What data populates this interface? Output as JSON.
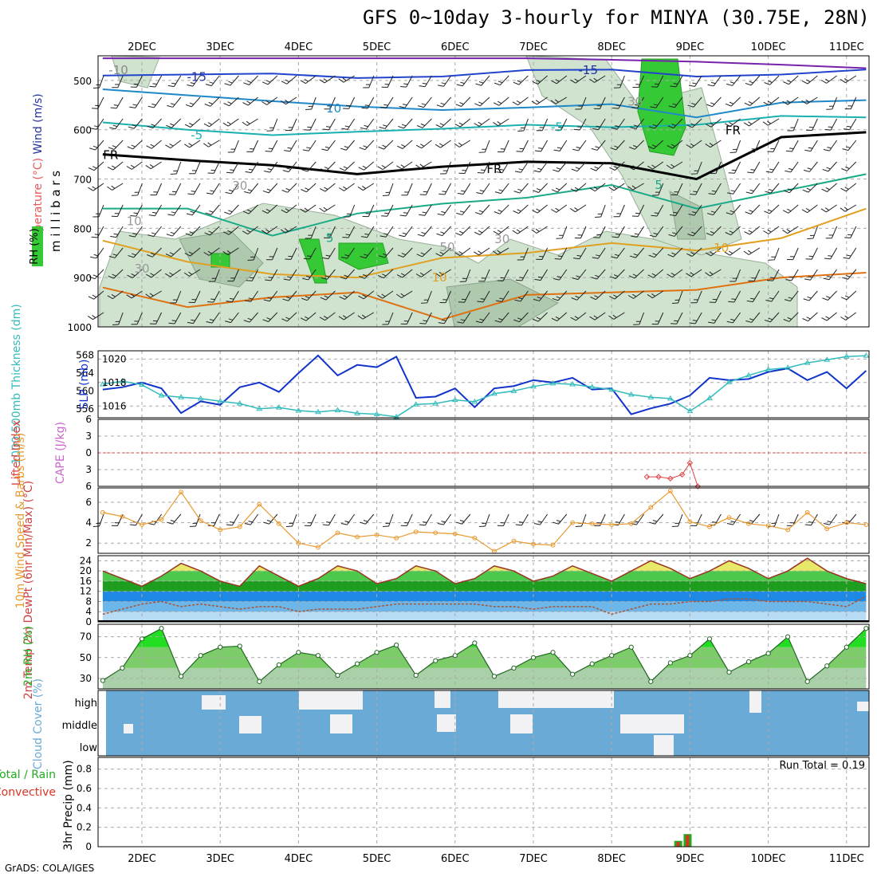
{
  "title": "GFS 0~10day 3-hourly for MINYA (30.75E, 28N)",
  "footer": "GrADS: COLA/IGES",
  "run_total": "Run Total = 0.19",
  "colors": {
    "rh_green": "#36c936",
    "temp_line": "#e85a5a",
    "wind_label": "#223399",
    "slp_line": "#1133cc",
    "thickness_line": "#33bbbb",
    "lifted_index": "#e04040",
    "cape": "#cc66cc",
    "wind10m": "#e89a30",
    "cloud_blue": "#6aaad6",
    "precip_green": "#22aa22",
    "precip_red": "#dd3322"
  },
  "chart_data": [
    {
      "type": "line",
      "panel": "upper_air",
      "ylabel_parts": [
        "RH (%)",
        "Temperature (°C)",
        "Wind (m/s)"
      ],
      "yaxis_label": "millibars",
      "x_ticks": [
        "2DEC",
        "3DEC",
        "4DEC",
        "5DEC",
        "6DEC",
        "7DEC",
        "8DEC",
        "9DEC",
        "10DEC",
        "11DEC"
      ],
      "y_ticks": [
        500,
        600,
        700,
        800,
        900,
        1000
      ],
      "ylim": [
        1000,
        450
      ],
      "contour_labels": [
        {
          "text": "-15",
          "x": 2.7,
          "p": 493,
          "color": "#223399"
        },
        {
          "text": "-15",
          "x": 7.7,
          "p": 479,
          "color": "#223399"
        },
        {
          "text": "-10",
          "x": 1.7,
          "p": 479,
          "color": "#888888"
        },
        {
          "text": "10",
          "x": 4.45,
          "p": 557,
          "color": "#1e88c8"
        },
        {
          "text": "-5",
          "x": 2.7,
          "p": 611,
          "color": "#1ab0b0"
        },
        {
          "text": "-5",
          "x": 7.3,
          "p": 595,
          "color": "#1ab0b0"
        },
        {
          "text": "FR",
          "x": 1.6,
          "p": 651,
          "color": "#000000"
        },
        {
          "text": "FR",
          "x": 6.5,
          "p": 680,
          "color": "#000000"
        },
        {
          "text": "FR",
          "x": 9.55,
          "p": 601,
          "color": "#000000"
        },
        {
          "text": "5",
          "x": 8.6,
          "p": 712,
          "color": "#1aaa88"
        },
        {
          "text": "5",
          "x": 4.4,
          "p": 820,
          "color": "#1aaa88"
        },
        {
          "text": "10",
          "x": 9.4,
          "p": 840,
          "color": "#e0a020"
        },
        {
          "text": "10",
          "x": 5.8,
          "p": 900,
          "color": "#e0a020"
        },
        {
          "text": "30",
          "x": 3.25,
          "p": 714,
          "color": "#999999"
        },
        {
          "text": "30",
          "x": 6.6,
          "p": 822,
          "color": "#999999"
        },
        {
          "text": "30",
          "x": 2.0,
          "p": 882,
          "color": "#999999"
        },
        {
          "text": "50",
          "x": 5.9,
          "p": 838,
          "color": "#999999"
        },
        {
          "text": "10",
          "x": 1.9,
          "p": 786,
          "color": "#999999"
        },
        {
          "text": "30",
          "x": 8.3,
          "p": 543,
          "color": "#999999"
        }
      ],
      "temperature_isotherms": [
        {
          "label": "-15",
          "color": "#7722aa",
          "p": [
            455,
            455,
            455,
            455,
            455,
            455,
            458,
            462,
            468,
            475
          ]
        },
        {
          "label": "-15",
          "color": "#2244cc",
          "p": [
            490,
            488,
            486,
            495,
            492,
            479,
            478,
            492,
            488,
            478
          ]
        },
        {
          "label": "-10",
          "color": "#1e88c8",
          "p": [
            518,
            530,
            542,
            553,
            560,
            555,
            548,
            575,
            545,
            540
          ]
        },
        {
          "label": "-5",
          "color": "#1ab0b0",
          "p": [
            585,
            600,
            611,
            604,
            598,
            590,
            595,
            590,
            572,
            575
          ]
        },
        {
          "label": "FR",
          "color": "#000000",
          "p": [
            650,
            662,
            672,
            690,
            675,
            665,
            668,
            700,
            615,
            605
          ]
        },
        {
          "label": "5",
          "color": "#1aaa88",
          "p": [
            760,
            760,
            815,
            770,
            750,
            738,
            712,
            760,
            725,
            690
          ]
        },
        {
          "label": "10",
          "color": "#e0a020",
          "p": [
            825,
            868,
            893,
            900,
            860,
            850,
            830,
            845,
            820,
            760
          ]
        },
        {
          "label": "15",
          "color": "#e07010",
          "p": [
            920,
            960,
            940,
            930,
            985,
            935,
            930,
            925,
            900,
            890
          ]
        }
      ]
    },
    {
      "type": "line",
      "panel": "slp_thickness",
      "ylabel_left": "1000-500mb Thickness (dm)",
      "ylabel_right": "SLP (mb)",
      "thickness_ticks": [
        556,
        560,
        564,
        568
      ],
      "slp_ticks": [
        1016,
        1018,
        1020
      ],
      "thickness_ylim": [
        554,
        569
      ],
      "slp_ylim": [
        1015,
        1020.7
      ],
      "x": [
        1.5,
        1.75,
        2,
        2.25,
        2.5,
        2.75,
        3,
        3.25,
        3.5,
        3.75,
        4,
        4.25,
        4.5,
        4.75,
        5,
        5.25,
        5.5,
        5.75,
        6,
        6.25,
        6.5,
        6.75,
        7,
        7.25,
        7.5,
        7.75,
        8,
        8.25,
        8.5,
        8.75,
        9,
        9.25,
        9.5,
        9.75,
        10,
        10.25,
        10.5,
        10.75,
        11,
        11.25
      ],
      "series": [
        {
          "name": "SLP",
          "values": [
            1017.4,
            1017.6,
            1018.0,
            1017.5,
            1015.4,
            1016.4,
            1016.1,
            1017.6,
            1018.0,
            1017.2,
            1018.8,
            1020.3,
            1018.6,
            1019.5,
            1019.3,
            1020.2,
            1016.7,
            1016.8,
            1017.5,
            1015.9,
            1017.5,
            1017.7,
            1018.2,
            1018.0,
            1018.4,
            1017.4,
            1017.5,
            1015.3,
            1015.8,
            1016.2,
            1016.9,
            1018.4,
            1018.2,
            1018.3,
            1018.9,
            1019.2,
            1018.2,
            1018.9,
            1017.5,
            1019.0
          ]
        },
        {
          "name": "Thickness",
          "values": [
            561.5,
            562.2,
            561.4,
            559.0,
            558.6,
            558.3,
            557.7,
            557.2,
            556.0,
            556.3,
            555.6,
            555.3,
            555.7,
            555.0,
            554.8,
            554.2,
            557.0,
            557.2,
            558.0,
            557.6,
            559.4,
            560.0,
            561.0,
            561.7,
            561.5,
            560.9,
            560.3,
            559.2,
            558.6,
            558.3,
            555.5,
            558.4,
            562.0,
            563.5,
            564.8,
            565.2,
            566.3,
            567.0,
            567.7,
            567.9
          ]
        }
      ]
    },
    {
      "type": "line",
      "panel": "stability",
      "ylabel_left": "Lifted Index",
      "ylabel_right": "CAPE (J/kg)",
      "y_ticks": [
        -6,
        -3,
        0,
        3,
        6
      ],
      "ylim": [
        -6,
        6
      ],
      "series": [
        {
          "name": "Lifted Index",
          "x": [
            8.45,
            8.6,
            8.75,
            8.9,
            9.0,
            9.1
          ],
          "values": [
            4.3,
            4.3,
            4.6,
            3.9,
            1.8,
            6
          ]
        }
      ]
    },
    {
      "type": "line",
      "panel": "wind10m",
      "ylabel": "10m Wind Speed & Barbs (m/s)",
      "y_ticks": [
        2,
        4,
        6
      ],
      "ylim": [
        1,
        7.4
      ],
      "x": [
        1.5,
        1.75,
        2,
        2.25,
        2.5,
        2.75,
        3,
        3.25,
        3.5,
        3.75,
        4,
        4.25,
        4.5,
        4.75,
        5,
        5.25,
        5.5,
        5.75,
        6,
        6.25,
        6.5,
        6.75,
        7,
        7.25,
        7.5,
        7.75,
        8,
        8.25,
        8.5,
        8.75,
        9,
        9.25,
        9.5,
        9.75,
        10,
        10.25,
        10.5,
        10.75,
        11,
        11.25
      ],
      "values": [
        5.0,
        4.6,
        3.8,
        4.3,
        7.0,
        4.2,
        3.3,
        3.6,
        5.8,
        3.9,
        2.0,
        1.6,
        3.0,
        2.6,
        2.8,
        2.5,
        3.1,
        3.0,
        2.9,
        2.5,
        1.2,
        2.2,
        1.9,
        1.8,
        4.0,
        3.9,
        3.8,
        3.9,
        5.5,
        7.1,
        4.1,
        3.6,
        4.5,
        3.9,
        3.7,
        3.3,
        5.0,
        3.4,
        4.0,
        3.8
      ]
    },
    {
      "type": "area",
      "panel": "temp2m",
      "ylabel": "2m Temp 2m DewPt (6hr Min/Max) (°C)",
      "y_ticks": [
        0,
        4,
        8,
        12,
        16,
        20,
        24
      ],
      "ylim": [
        0,
        26
      ],
      "x": [
        1.5,
        1.75,
        2,
        2.25,
        2.5,
        2.75,
        3,
        3.25,
        3.5,
        3.75,
        4,
        4.25,
        4.5,
        4.75,
        5,
        5.25,
        5.5,
        5.75,
        6,
        6.25,
        6.5,
        6.75,
        7,
        7.25,
        7.5,
        7.75,
        8,
        8.25,
        8.5,
        8.75,
        9,
        9.25,
        9.5,
        9.75,
        10,
        10.25,
        10.5,
        10.75,
        11,
        11.25
      ],
      "series": [
        {
          "name": "Temperature",
          "values": [
            20,
            17,
            14,
            18,
            23,
            20,
            16,
            14,
            22,
            18,
            14,
            17,
            22,
            20,
            15,
            17,
            22,
            20,
            15,
            17,
            22,
            20,
            16,
            18,
            22,
            19,
            16,
            20,
            24,
            21,
            17,
            20,
            24,
            21,
            17,
            20,
            25,
            20,
            17,
            15
          ]
        },
        {
          "name": "Dew point",
          "values": [
            3,
            5,
            7,
            8,
            6,
            7,
            6,
            5,
            6,
            6,
            4,
            5,
            5,
            5,
            6,
            7,
            7,
            7,
            7,
            7,
            6,
            6,
            5,
            6,
            6,
            6,
            3,
            5,
            7,
            7,
            8,
            8,
            9,
            9,
            8,
            8,
            8,
            7,
            6,
            10
          ]
        }
      ]
    },
    {
      "type": "area",
      "panel": "rh2m",
      "ylabel": "2m RH (%)",
      "y_ticks": [
        30,
        50,
        70
      ],
      "ylim": [
        20,
        82
      ],
      "x": [
        1.5,
        1.75,
        2,
        2.25,
        2.5,
        2.75,
        3,
        3.25,
        3.5,
        3.75,
        4,
        4.25,
        4.5,
        4.75,
        5,
        5.25,
        5.5,
        5.75,
        6,
        6.25,
        6.5,
        6.75,
        7,
        7.25,
        7.5,
        7.75,
        8,
        8.25,
        8.5,
        8.75,
        9,
        9.25,
        9.5,
        9.75,
        10,
        10.25,
        10.5,
        10.75,
        11,
        11.25
      ],
      "values": [
        28,
        40,
        68,
        78,
        32,
        52,
        60,
        61,
        27,
        43,
        55,
        52,
        33,
        44,
        55,
        62,
        33,
        47,
        52,
        64,
        32,
        40,
        50,
        55,
        34,
        44,
        52,
        60,
        27,
        45,
        52,
        68,
        36,
        46,
        54,
        70,
        27,
        42,
        60,
        78
      ]
    },
    {
      "type": "heatmap",
      "panel": "cloud_cover",
      "ylabel": "Cloud Cover (%)",
      "rows": [
        "high",
        "middle",
        "low"
      ]
    },
    {
      "type": "bar",
      "panel": "precip",
      "ylabel": "3hr Precip (mm)",
      "legend_left": [
        "Total / Rain",
        "Convective"
      ],
      "y_ticks": [
        0,
        0.2,
        0.4,
        0.6,
        0.8
      ],
      "ylim": [
        0,
        0.92
      ],
      "bars": [
        {
          "x": 8.85,
          "total": 0.06,
          "convective": 0.05
        },
        {
          "x": 8.97,
          "total": 0.13,
          "convective": 0.12
        }
      ]
    }
  ]
}
